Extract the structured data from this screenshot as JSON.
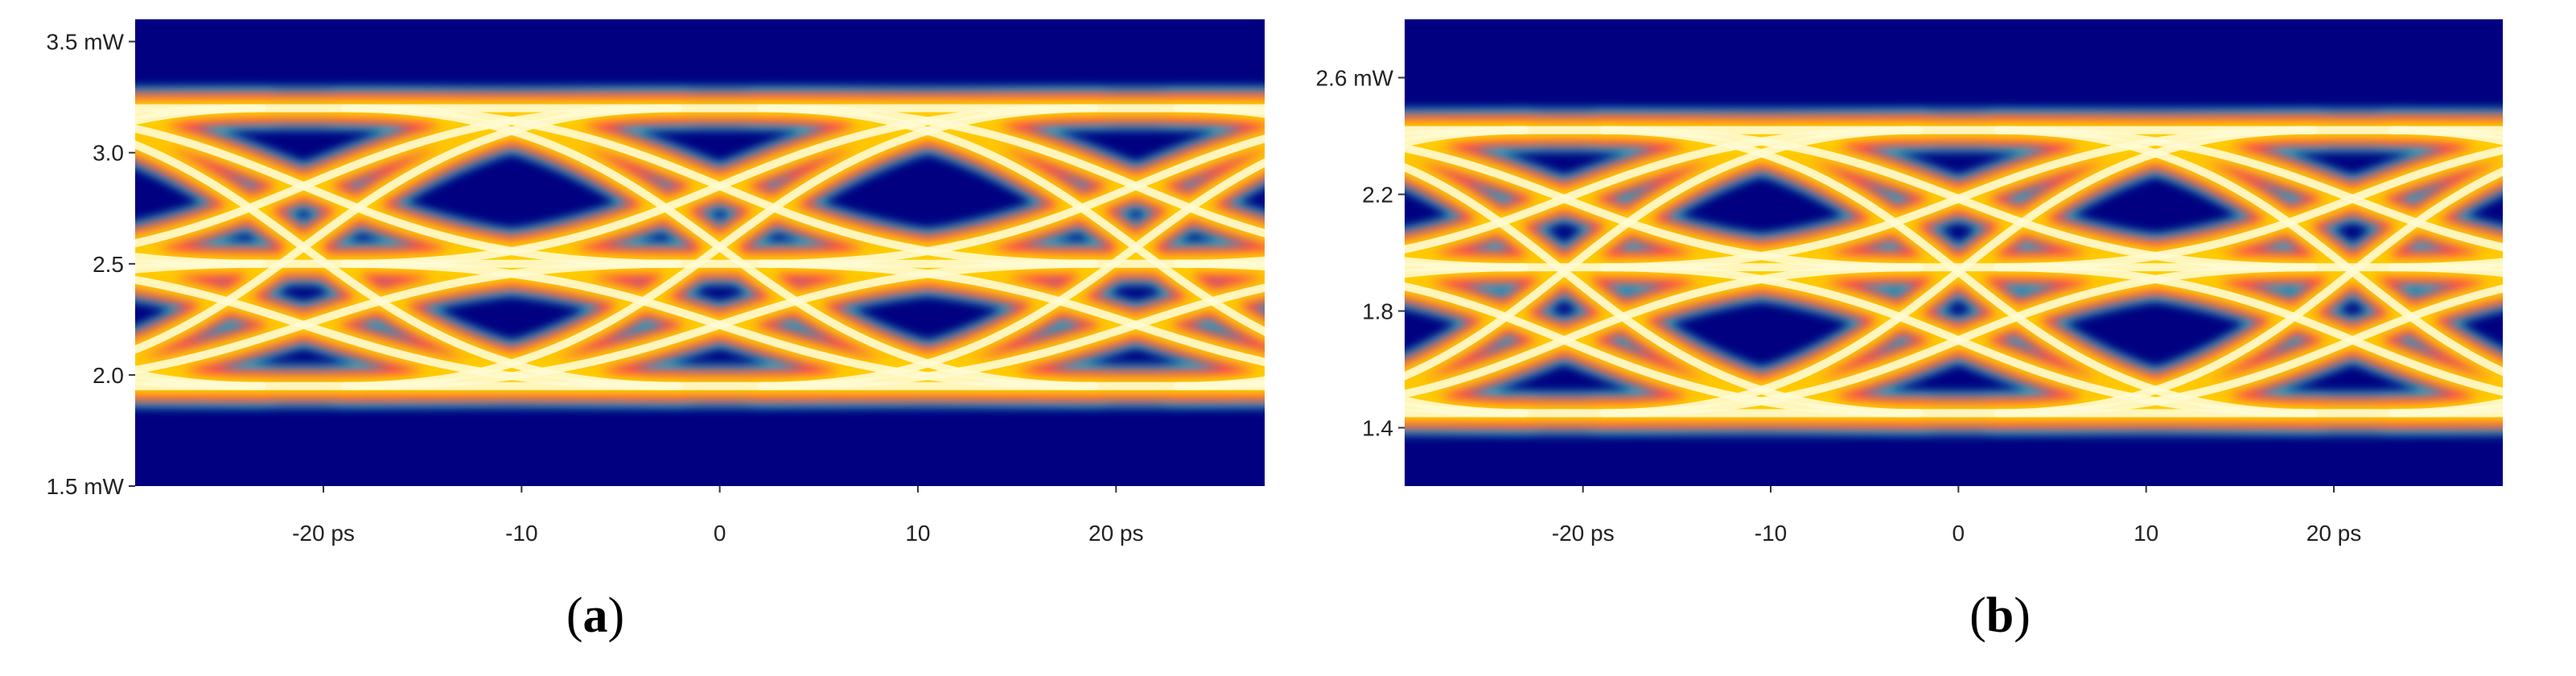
{
  "chart_data": [
    {
      "type": "eye-diagram",
      "panel_label": "a",
      "y_ticks": [
        {
          "value": 3.5,
          "label": "3.5 mW"
        },
        {
          "value": 3.0,
          "label": "3.0"
        },
        {
          "value": 2.5,
          "label": "2.5"
        },
        {
          "value": 2.0,
          "label": "2.0"
        },
        {
          "value": 1.5,
          "label": "1.5 mW"
        }
      ],
      "x_ticks": [
        {
          "value": -20,
          "label": "-20 ps"
        },
        {
          "value": -10,
          "label": "-10"
        },
        {
          "value": 0,
          "label": "0"
        },
        {
          "value": 10,
          "label": "10"
        },
        {
          "value": 20,
          "label": "20 ps"
        }
      ],
      "x_range": [
        -29.5,
        27.5
      ],
      "y_range": [
        1.5,
        3.6
      ],
      "levels": [
        1.95,
        2.5,
        3.2
      ],
      "crossings_ps": [
        -21,
        0,
        21
      ],
      "unit_interval_ps": 21,
      "colors": {
        "background": "#000080",
        "edge": "#20b8c8",
        "mid": "#ff3355",
        "hot": "#ffcc00",
        "core": "#fffbd0"
      }
    },
    {
      "type": "eye-diagram",
      "panel_label": "b",
      "y_ticks": [
        {
          "value": 2.6,
          "label": "2.6 mW"
        },
        {
          "value": 2.2,
          "label": "2.2"
        },
        {
          "value": 1.8,
          "label": "1.8"
        },
        {
          "value": 1.4,
          "label": "1.4"
        }
      ],
      "x_ticks": [
        {
          "value": -20,
          "label": "-20 ps"
        },
        {
          "value": -10,
          "label": "-10"
        },
        {
          "value": 0,
          "label": "0"
        },
        {
          "value": 10,
          "label": "10"
        },
        {
          "value": 20,
          "label": "20 ps"
        }
      ],
      "x_range": [
        -29.5,
        29.0
      ],
      "y_range": [
        1.2,
        2.8
      ],
      "levels": [
        1.45,
        1.95,
        2.42
      ],
      "crossings_ps": [
        -21,
        0,
        21
      ],
      "unit_interval_ps": 21,
      "colors": {
        "background": "#000080",
        "edge": "#20b8c8",
        "mid": "#ff3355",
        "hot": "#ffcc00",
        "core": "#fffbd0"
      }
    }
  ]
}
